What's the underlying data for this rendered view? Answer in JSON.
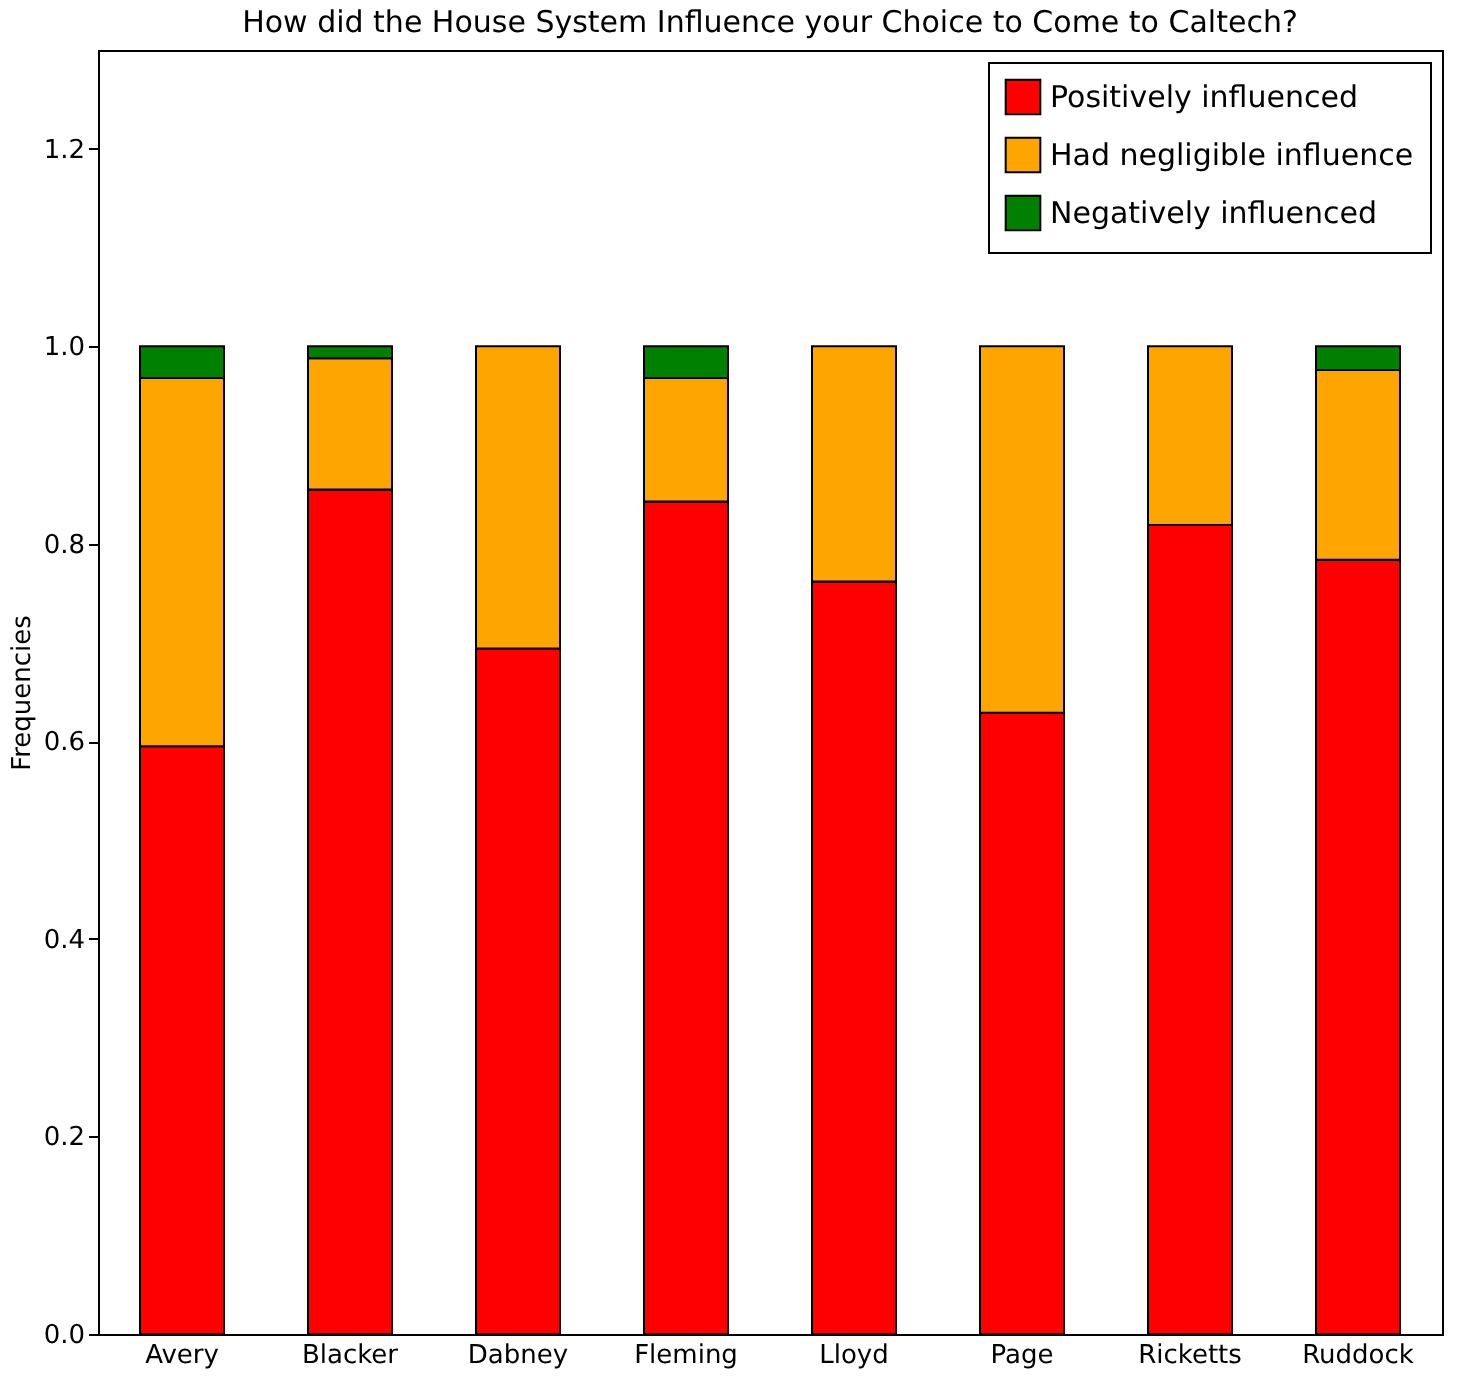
{
  "chart_data": {
    "type": "bar",
    "title": "How did the House System Influence your Choice to Come to Caltech?",
    "ylabel": "Frequencies",
    "categories": [
      "Avery",
      "Blacker",
      "Dabney",
      "Fleming",
      "Lloyd",
      "Page",
      "Ricketts",
      "Ruddock"
    ],
    "stacked": true,
    "legend": "top right",
    "grid": false,
    "ylim": [
      0,
      1.3
    ],
    "yticks": [
      {
        "value": 0,
        "label": "0.0"
      },
      {
        "value": 0.2,
        "label": "0.2"
      },
      {
        "value": 0.4,
        "label": "0.4"
      },
      {
        "value": 0.6,
        "label": "0.6"
      },
      {
        "value": 0.8,
        "label": "0.8"
      },
      {
        "value": 1,
        "label": "1.0"
      },
      {
        "value": 1.2,
        "label": "1.2"
      }
    ],
    "series": [
      {
        "name": "Positively influenced",
        "color": "#ff0000",
        "values": [
          0.595,
          0.855,
          0.694,
          0.843,
          0.762,
          0.629,
          0.819,
          0.784
        ]
      },
      {
        "name": "Had negligible influence",
        "color": "#ffa500",
        "values": [
          0.373,
          0.133,
          0.306,
          0.125,
          0.238,
          0.371,
          0.181,
          0.192
        ]
      },
      {
        "name": "Negatively influenced",
        "color": "#008000",
        "values": [
          0.032,
          0.012,
          null,
          0.032,
          null,
          null,
          null,
          0.024
        ]
      }
    ]
  }
}
